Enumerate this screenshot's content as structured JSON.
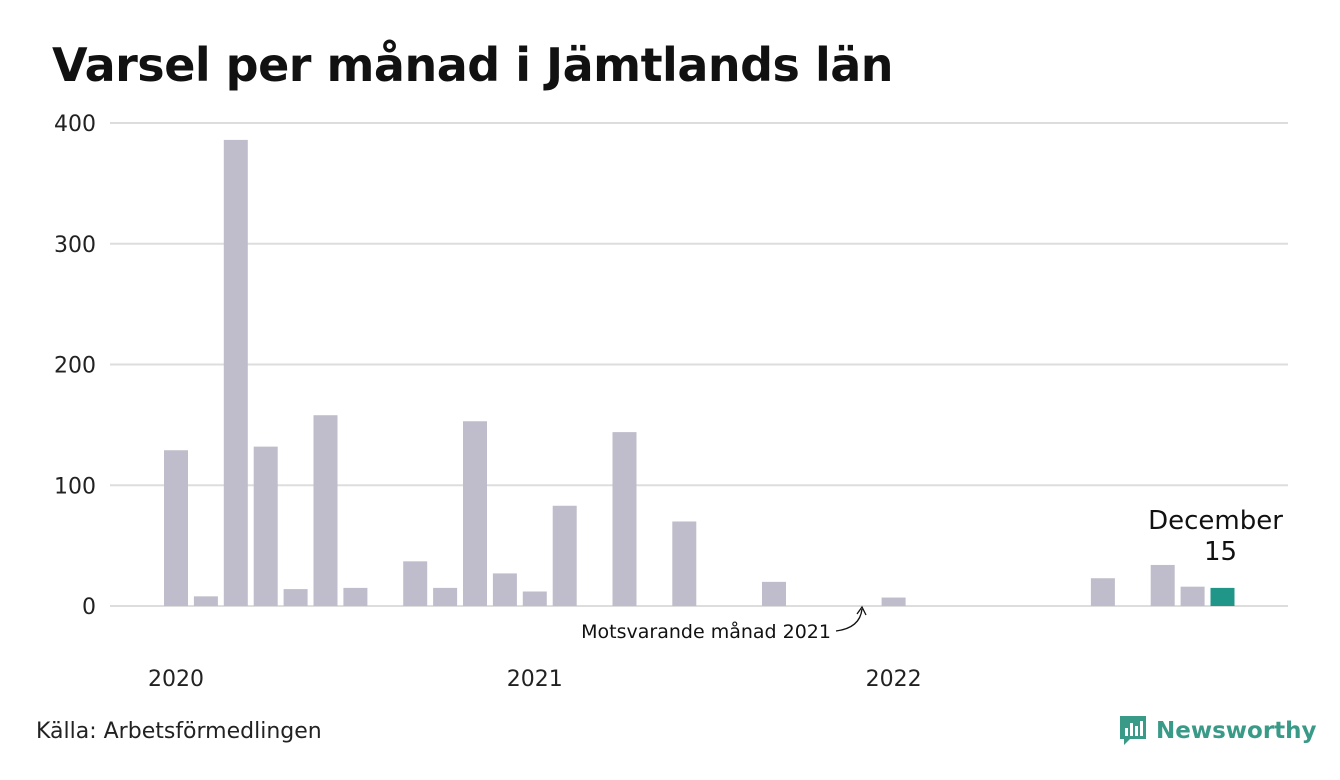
{
  "chart_data": {
    "type": "bar",
    "title": "Varsel per månad i Jämtlands län",
    "ylim": [
      0,
      400
    ],
    "yticks": [
      0,
      100,
      200,
      300,
      400
    ],
    "x_year_labels": [
      "2020",
      "2021",
      "2022"
    ],
    "grid": true,
    "months": [
      "2020-01",
      "2020-02",
      "2020-03",
      "2020-04",
      "2020-05",
      "2020-06",
      "2020-07",
      "2020-08",
      "2020-09",
      "2020-10",
      "2020-11",
      "2020-12",
      "2021-01",
      "2021-02",
      "2021-03",
      "2021-04",
      "2021-05",
      "2021-06",
      "2021-07",
      "2021-08",
      "2021-09",
      "2021-10",
      "2021-11",
      "2021-12",
      "2022-01",
      "2022-02",
      "2022-03",
      "2022-04",
      "2022-05",
      "2022-06",
      "2022-07",
      "2022-08",
      "2022-09",
      "2022-10",
      "2022-11",
      "2022-12"
    ],
    "values": [
      129,
      8,
      386,
      132,
      14,
      158,
      15,
      0,
      37,
      15,
      153,
      27,
      12,
      83,
      0,
      144,
      0,
      70,
      0,
      0,
      20,
      0,
      0,
      0,
      7,
      0,
      0,
      0,
      0,
      0,
      0,
      23,
      0,
      34,
      16,
      15
    ],
    "highlight": {
      "month": "2022-12",
      "label": "December",
      "value_label": "15"
    },
    "comparison": {
      "month": "2021-12",
      "label": "Motsvarande månad 2021"
    },
    "colors": {
      "default": "#bfbdcb",
      "highlight": "#1f9688",
      "comparison": "#444444",
      "grid": "#dddddd"
    }
  },
  "source": "Källa: Arbetsförmedlingen",
  "logo": {
    "text": "Newsworthy",
    "icon": "newsworthy-chart-icon",
    "color": "#3a9a88"
  }
}
